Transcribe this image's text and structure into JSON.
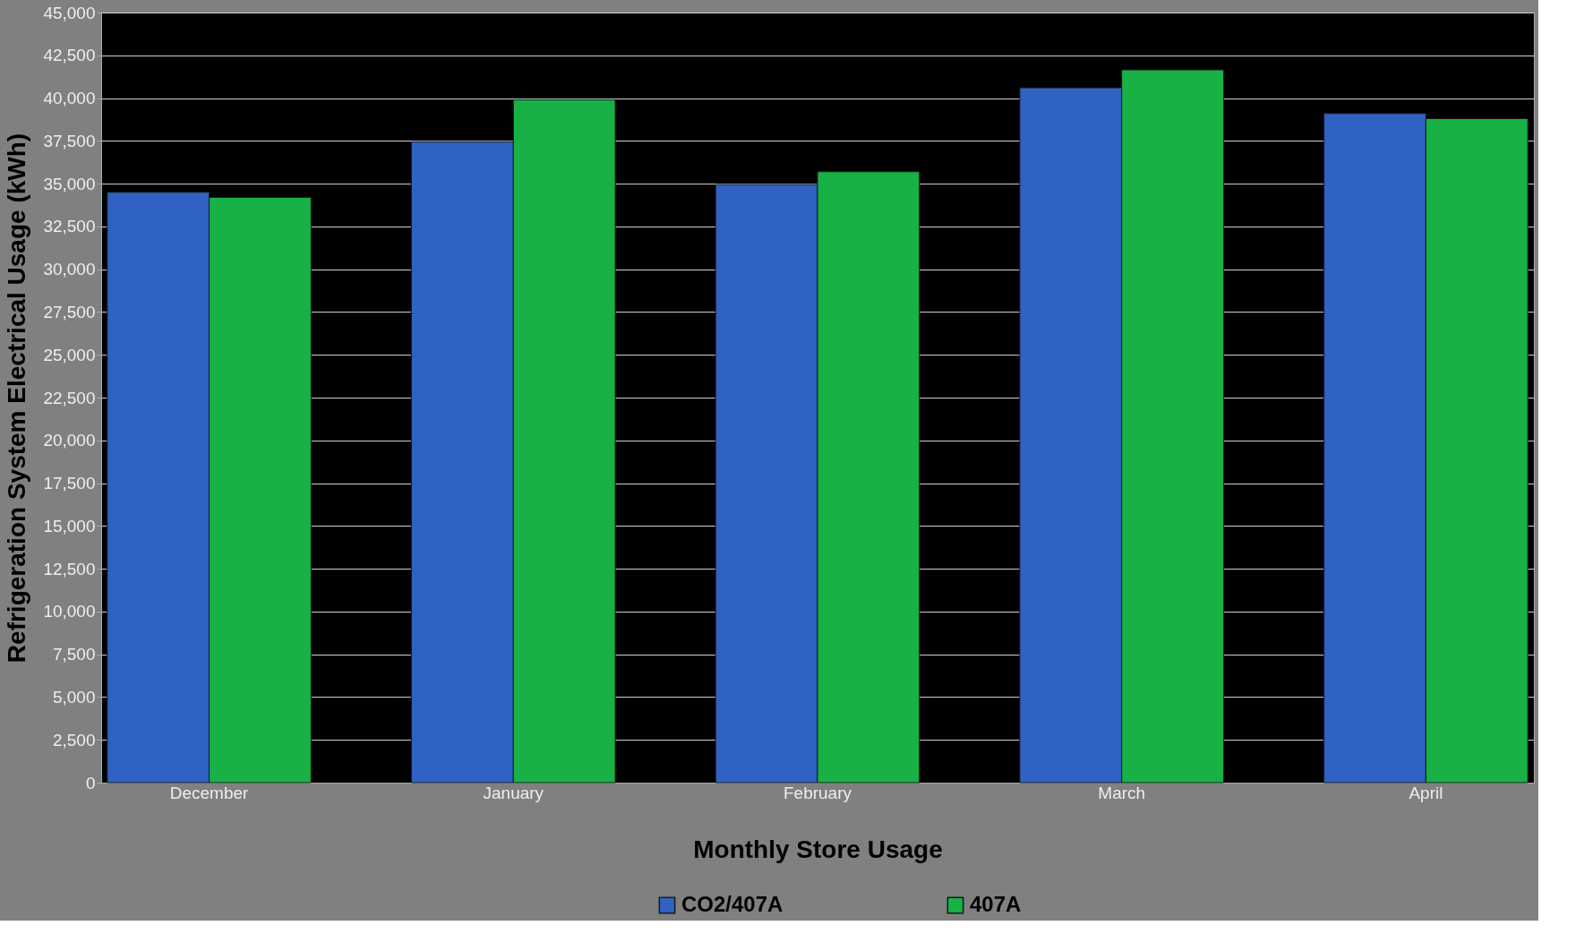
{
  "chart_data": {
    "type": "bar",
    "xlabel": "Monthly Store Usage",
    "ylabel": "Refrigeration System Electrical Usage (kWh)",
    "categories": [
      "December",
      "January",
      "February",
      "March",
      "April"
    ],
    "series": [
      {
        "name": "CO2/407A",
        "color": "#2f62c4",
        "values": [
          34500,
          37450,
          34950,
          40600,
          39100
        ]
      },
      {
        "name": "407A",
        "color": "#17b146",
        "values": [
          34200,
          39900,
          35700,
          41650,
          38800
        ]
      }
    ],
    "ylim": [
      0,
      45000
    ],
    "yticks": [
      0,
      {
        "value": 2500,
        "label": "2,500"
      },
      {
        "value": 5000,
        "label": "5,000"
      },
      {
        "value": 7500,
        "label": "7,500"
      },
      {
        "value": 10000,
        "label": "10,000"
      },
      {
        "value": 12500,
        "label": "12,500"
      },
      {
        "value": 15000,
        "label": "15,000"
      },
      {
        "value": 17500,
        "label": "17,500"
      },
      {
        "value": 20000,
        "label": "20,000"
      },
      {
        "value": 22500,
        "label": "22,500"
      },
      {
        "value": 25000,
        "label": "25,000"
      },
      {
        "value": 27500,
        "label": "27,500"
      },
      {
        "value": 30000,
        "label": "30,000"
      },
      {
        "value": 32500,
        "label": "32,500"
      },
      {
        "value": 35000,
        "label": "35,000"
      },
      {
        "value": 37500,
        "label": "37,500"
      },
      {
        "value": 40000,
        "label": "40,000"
      },
      {
        "value": 42500,
        "label": "42,500"
      },
      {
        "value": 45000,
        "label": "45,000"
      }
    ],
    "grid": "y",
    "legend": "bottom"
  }
}
